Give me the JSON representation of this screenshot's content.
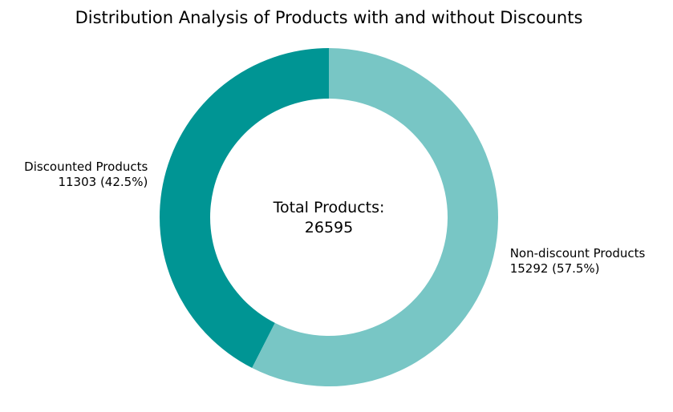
{
  "chart_data": {
    "type": "pie",
    "variant": "donut",
    "title": "Distribution Analysis of Products with and without Discounts",
    "center_label": {
      "line1": "Total Products:",
      "line2": "26595"
    },
    "total": 26595,
    "start_angle_deg": 90,
    "direction": "counterclockwise",
    "legend": "none",
    "slices": [
      {
        "label": "Discounted Products",
        "value": 11303,
        "percent": 42.5,
        "value_text": "11303 (42.5%)",
        "color": "#009594"
      },
      {
        "label": "Non-discount Products",
        "value": 15292,
        "percent": 57.5,
        "value_text": "15292 (57.5%)",
        "color": "#78c6c5"
      }
    ]
  }
}
